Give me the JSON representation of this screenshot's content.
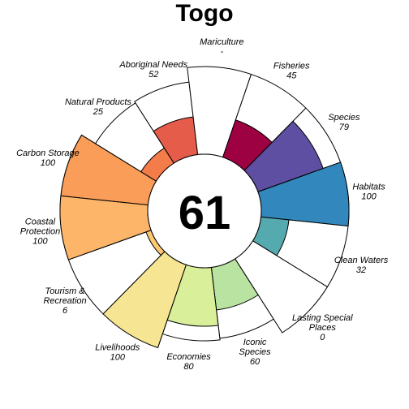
{
  "chart_data": {
    "type": "flower",
    "title": "Togo",
    "center_score": "61",
    "max_value": 100,
    "goals": [
      {
        "label_lines": [
          "Carbon Storage"
        ],
        "value_text": "100",
        "value": 100,
        "color": "#f99d59"
      },
      {
        "label_lines": [
          "Natural Products"
        ],
        "value_text": "25",
        "value": 25,
        "color": "#f47c4a"
      },
      {
        "label_lines": [
          "Aboriginal Needs"
        ],
        "value_text": "52",
        "value": 52,
        "color": "#e55c4a"
      },
      {
        "label_lines": [
          "Mariculture"
        ],
        "value_text": "-",
        "value": null,
        "color": "#d53e4f"
      },
      {
        "label_lines": [
          "Fisheries"
        ],
        "value_text": "45",
        "value": 45,
        "color": "#9e0142"
      },
      {
        "label_lines": [
          "Species"
        ],
        "value_text": "79",
        "value": 79,
        "color": "#5e4fa2"
      },
      {
        "label_lines": [
          "Habitats"
        ],
        "value_text": "100",
        "value": 100,
        "color": "#3288bd"
      },
      {
        "label_lines": [
          "Clean Waters"
        ],
        "value_text": "32",
        "value": 32,
        "color": "#55aaaf"
      },
      {
        "label_lines": [
          "Lasting Special",
          "Places"
        ],
        "value_text": "0",
        "value": 0,
        "color": "#90d0a4"
      },
      {
        "label_lines": [
          "Iconic",
          "Species"
        ],
        "value_text": "60",
        "value": 60,
        "color": "#b9e3a0"
      },
      {
        "label_lines": [
          "Economies"
        ],
        "value_text": "80",
        "value": 80,
        "color": "#d9ef9a"
      },
      {
        "label_lines": [
          "Livelihoods"
        ],
        "value_text": "100",
        "value": 100,
        "color": "#f6e592"
      },
      {
        "label_lines": [
          "Tourism &",
          "Recreation"
        ],
        "value_text": "6",
        "value": 6,
        "color": "#fdc872"
      },
      {
        "label_lines": [
          "Coastal",
          "Protection"
        ],
        "value_text": "100",
        "value": 100,
        "color": "#fdb56a"
      }
    ]
  }
}
